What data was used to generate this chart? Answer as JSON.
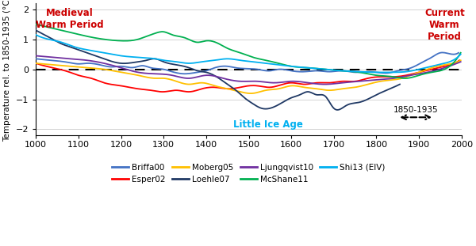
{
  "ylabel": "Temperature rel. to 1850-1935 (°C)",
  "xlim": [
    1000,
    2000
  ],
  "ylim": [
    -2.2,
    2.2
  ],
  "xticks": [
    1000,
    1100,
    1200,
    1300,
    1400,
    1500,
    1600,
    1700,
    1800,
    1900,
    2000
  ],
  "yticks": [
    -2,
    -1,
    0,
    1,
    2
  ],
  "medieval_warm_text": "Medieval\nWarm Period",
  "current_warm_text": "Current\nWarm\nPeriod",
  "little_ice_age_text": "Little Ice Age",
  "period_label": "1850-1935",
  "series": {
    "Briffa00": {
      "color": "#4472C4",
      "xk": [
        1000,
        1050,
        1080,
        1100,
        1120,
        1150,
        1180,
        1200,
        1230,
        1250,
        1270,
        1300,
        1320,
        1350,
        1380,
        1400,
        1420,
        1450,
        1470,
        1500,
        1520,
        1550,
        1570,
        1600,
        1630,
        1660,
        1690,
        1720,
        1750,
        1780,
        1800,
        1830,
        1850,
        1870,
        1890,
        1910,
        1930,
        1950,
        1980,
        1993
      ],
      "yk": [
        0.35,
        0.28,
        0.22,
        0.18,
        0.2,
        0.15,
        0.08,
        0.1,
        0.06,
        0.12,
        0.05,
        0.0,
        -0.08,
        -0.15,
        -0.1,
        -0.05,
        0.05,
        0.1,
        0.05,
        0.02,
        0.0,
        -0.05,
        0.0,
        -0.05,
        -0.08,
        -0.05,
        -0.08,
        -0.05,
        -0.1,
        -0.08,
        -0.1,
        -0.12,
        -0.05,
        0.0,
        0.1,
        0.25,
        0.4,
        0.55,
        0.5,
        0.55
      ]
    },
    "Esper02": {
      "color": "#FF0000",
      "xk": [
        1000,
        1040,
        1080,
        1100,
        1130,
        1160,
        1200,
        1240,
        1270,
        1300,
        1330,
        1360,
        1390,
        1420,
        1450,
        1480,
        1500,
        1520,
        1550,
        1580,
        1600,
        1630,
        1660,
        1690,
        1720,
        1750,
        1780,
        1810,
        1840,
        1870,
        1900,
        1930,
        1960,
        1990,
        1995
      ],
      "yk": [
        0.2,
        0.05,
        -0.1,
        -0.2,
        -0.3,
        -0.45,
        -0.55,
        -0.65,
        -0.7,
        -0.75,
        -0.7,
        -0.75,
        -0.65,
        -0.6,
        -0.65,
        -0.6,
        -0.55,
        -0.55,
        -0.6,
        -0.5,
        -0.45,
        -0.5,
        -0.45,
        -0.45,
        -0.4,
        -0.4,
        -0.3,
        -0.25,
        -0.25,
        -0.2,
        -0.1,
        0.0,
        0.1,
        0.25,
        0.3
      ]
    },
    "Moberg05": {
      "color": "#FFC000",
      "xk": [
        1000,
        1040,
        1080,
        1120,
        1160,
        1200,
        1240,
        1280,
        1300,
        1330,
        1360,
        1390,
        1420,
        1450,
        1480,
        1510,
        1540,
        1570,
        1600,
        1630,
        1660,
        1690,
        1720,
        1750,
        1780,
        1810,
        1840,
        1860,
        1880,
        1900,
        1930,
        1960,
        1980,
        1998
      ],
      "yk": [
        0.2,
        0.15,
        0.1,
        0.05,
        0.0,
        -0.1,
        -0.2,
        -0.3,
        -0.3,
        -0.4,
        -0.5,
        -0.45,
        -0.55,
        -0.65,
        -0.75,
        -0.8,
        -0.7,
        -0.65,
        -0.55,
        -0.6,
        -0.65,
        -0.7,
        -0.65,
        -0.6,
        -0.5,
        -0.4,
        -0.35,
        -0.3,
        -0.2,
        -0.1,
        0.05,
        0.15,
        0.2,
        0.3
      ]
    },
    "Loehle07": {
      "color": "#1F3864",
      "xk": [
        1000,
        1020,
        1040,
        1060,
        1080,
        1100,
        1130,
        1160,
        1200,
        1240,
        1260,
        1280,
        1300,
        1330,
        1360,
        1380,
        1400,
        1430,
        1450,
        1470,
        1490,
        1510,
        1530,
        1560,
        1580,
        1600,
        1620,
        1640,
        1660,
        1680,
        1700,
        1730,
        1760,
        1800,
        1840,
        1855
      ],
      "yk": [
        1.3,
        1.15,
        1.0,
        0.85,
        0.75,
        0.65,
        0.5,
        0.35,
        0.2,
        0.25,
        0.3,
        0.35,
        0.25,
        0.15,
        0.05,
        -0.05,
        -0.1,
        -0.3,
        -0.5,
        -0.7,
        -0.95,
        -1.15,
        -1.3,
        -1.25,
        -1.1,
        -0.95,
        -0.85,
        -0.75,
        -0.85,
        -0.9,
        -1.3,
        -1.2,
        -1.1,
        -0.85,
        -0.6,
        -0.5
      ]
    },
    "Ljungqvist10": {
      "color": "#7030A0",
      "xk": [
        1000,
        1040,
        1080,
        1120,
        1160,
        1200,
        1240,
        1280,
        1320,
        1360,
        1400,
        1440,
        1480,
        1520,
        1560,
        1600,
        1640,
        1680,
        1720,
        1760,
        1800,
        1840,
        1880,
        1920,
        1960,
        1998
      ],
      "yk": [
        0.45,
        0.4,
        0.35,
        0.3,
        0.2,
        0.05,
        -0.1,
        -0.15,
        -0.2,
        -0.3,
        -0.2,
        -0.3,
        -0.4,
        -0.4,
        -0.45,
        -0.4,
        -0.45,
        -0.5,
        -0.45,
        -0.4,
        -0.35,
        -0.3,
        -0.2,
        -0.1,
        0.05,
        0.25
      ]
    },
    "McShane11": {
      "color": "#00B050",
      "xk": [
        1000,
        1030,
        1060,
        1090,
        1120,
        1160,
        1200,
        1240,
        1260,
        1280,
        1300,
        1320,
        1350,
        1380,
        1400,
        1430,
        1450,
        1480,
        1510,
        1540,
        1570,
        1600,
        1640,
        1680,
        1720,
        1760,
        1800,
        1840,
        1870,
        1900,
        1930,
        1960,
        1980,
        1998
      ],
      "yk": [
        1.5,
        1.4,
        1.3,
        1.2,
        1.1,
        1.0,
        0.95,
        1.0,
        1.1,
        1.2,
        1.25,
        1.15,
        1.05,
        0.9,
        0.95,
        0.85,
        0.7,
        0.55,
        0.4,
        0.3,
        0.2,
        0.1,
        0.05,
        0.0,
        -0.05,
        -0.1,
        -0.2,
        -0.25,
        -0.3,
        -0.2,
        -0.1,
        0.0,
        0.2,
        0.55
      ]
    },
    "Shi13_EIV": {
      "color": "#00B0F0",
      "xk": [
        1000,
        1030,
        1060,
        1090,
        1120,
        1160,
        1200,
        1240,
        1280,
        1300,
        1330,
        1360,
        1390,
        1420,
        1450,
        1480,
        1510,
        1540,
        1570,
        1600,
        1640,
        1680,
        1720,
        1760,
        1800,
        1840,
        1870,
        1900,
        1930,
        1960,
        1980,
        1998
      ],
      "yk": [
        1.15,
        1.0,
        0.9,
        0.75,
        0.65,
        0.55,
        0.45,
        0.4,
        0.35,
        0.3,
        0.25,
        0.2,
        0.25,
        0.3,
        0.35,
        0.3,
        0.25,
        0.2,
        0.15,
        0.1,
        0.05,
        0.0,
        -0.05,
        -0.08,
        -0.1,
        -0.1,
        -0.08,
        0.0,
        0.1,
        0.2,
        0.3,
        0.5
      ]
    }
  },
  "legend_entries": [
    "Briffa00",
    "Esper02",
    "Moberg05",
    "Loehle07",
    "Ljungqvist10",
    "McShane11",
    "Shi13 (EIV)"
  ],
  "legend_colors": [
    "#4472C4",
    "#FF0000",
    "#FFC000",
    "#1F3864",
    "#7030A0",
    "#00B050",
    "#00B0F0"
  ]
}
